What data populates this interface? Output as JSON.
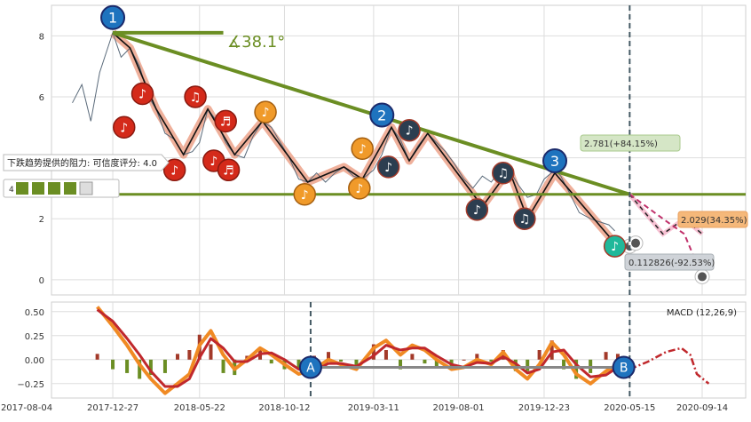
{
  "chart_data": [
    {
      "type": "line",
      "panel": "price",
      "x_dates": [
        "2017-08-04",
        "2017-12-27",
        "2018-05-22",
        "2018-10-12",
        "2019-03-11",
        "2019-08-01",
        "2019-12-23",
        "2020-05-15",
        "2020-09-14"
      ],
      "ylim": [
        -0.5,
        9.0
      ],
      "y_ticks": [
        0,
        2,
        4,
        6,
        8
      ],
      "grid": true,
      "colors": {
        "price_line": "#5a6a7a",
        "trend": "#6b8e23",
        "zigzag": "#111111",
        "highlight": "#e9967a",
        "forecast_up": "#f4a6c0",
        "forecast_dash": "#c0306a"
      },
      "price_series": [
        [
          "2017-10-20",
          5.8
        ],
        [
          "2017-11-05",
          6.4
        ],
        [
          "2017-11-20",
          5.2
        ],
        [
          "2017-12-05",
          6.8
        ],
        [
          "2017-12-27",
          8.1
        ],
        [
          "2018-01-10",
          7.3
        ],
        [
          "2018-01-25",
          7.6
        ],
        [
          "2018-02-10",
          7.0
        ],
        [
          "2018-02-25",
          6.0
        ],
        [
          "2018-03-10",
          5.6
        ],
        [
          "2018-03-25",
          4.8
        ],
        [
          "2018-04-10",
          4.6
        ],
        [
          "2018-04-25",
          4.1
        ],
        [
          "2018-05-10",
          4.2
        ],
        [
          "2018-05-22",
          4.5
        ],
        [
          "2018-06-05",
          5.6
        ],
        [
          "2018-06-20",
          5.2
        ],
        [
          "2018-07-05",
          4.5
        ],
        [
          "2018-07-20",
          4.1
        ],
        [
          "2018-08-05",
          4.0
        ],
        [
          "2018-08-20",
          4.7
        ],
        [
          "2018-09-05",
          5.2
        ],
        [
          "2018-09-20",
          5.0
        ],
        [
          "2018-10-05",
          4.5
        ],
        [
          "2018-10-20",
          4.0
        ],
        [
          "2018-11-05",
          3.3
        ],
        [
          "2018-11-20",
          3.2
        ],
        [
          "2018-12-05",
          3.5
        ],
        [
          "2018-12-20",
          3.2
        ],
        [
          "2019-01-05",
          3.5
        ],
        [
          "2019-01-20",
          3.7
        ],
        [
          "2019-02-05",
          3.4
        ],
        [
          "2019-02-20",
          3.3
        ],
        [
          "2019-03-11",
          3.6
        ],
        [
          "2019-03-25",
          4.1
        ],
        [
          "2019-04-10",
          5.0
        ],
        [
          "2019-04-25",
          4.6
        ],
        [
          "2019-05-10",
          3.9
        ],
        [
          "2019-05-25",
          4.4
        ],
        [
          "2019-06-10",
          4.8
        ],
        [
          "2019-06-25",
          4.5
        ],
        [
          "2019-07-10",
          4.2
        ],
        [
          "2019-07-25",
          3.8
        ],
        [
          "2019-08-10",
          3.3
        ],
        [
          "2019-08-25",
          3.0
        ],
        [
          "2019-09-10",
          3.4
        ],
        [
          "2019-09-25",
          3.2
        ],
        [
          "2019-10-10",
          3.6
        ],
        [
          "2019-10-25",
          3.6
        ],
        [
          "2019-11-10",
          3.1
        ],
        [
          "2019-11-25",
          2.7
        ],
        [
          "2019-12-10",
          2.8
        ],
        [
          "2019-12-23",
          3.3
        ],
        [
          "2020-01-10",
          3.6
        ],
        [
          "2020-01-20",
          3.4
        ],
        [
          "2020-02-05",
          2.8
        ],
        [
          "2020-02-20",
          2.2
        ],
        [
          "2020-03-10",
          2.0
        ],
        [
          "2020-03-25",
          1.9
        ],
        [
          "2020-04-10",
          1.8
        ],
        [
          "2020-04-20",
          1.6
        ]
      ],
      "support_level": 2.8,
      "resistance_line": [
        [
          "2017-12-27",
          8.1
        ],
        [
          "2020-05-15",
          2.8
        ]
      ],
      "flat_line": [
        [
          "2017-12-27",
          8.1
        ],
        [
          "2018-07-01",
          8.1
        ]
      ],
      "angle_label": "∡38.1°",
      "zigzag": [
        [
          "2017-12-27",
          8.1
        ],
        [
          "2018-01-25",
          7.6
        ],
        [
          "2018-03-10",
          5.6
        ],
        [
          "2018-04-25",
          4.1
        ],
        [
          "2018-06-05",
          5.6
        ],
        [
          "2018-07-20",
          4.1
        ],
        [
          "2018-09-05",
          5.2
        ],
        [
          "2018-11-20",
          3.2
        ],
        [
          "2019-01-20",
          3.7
        ],
        [
          "2019-02-20",
          3.3
        ],
        [
          "2019-04-10",
          5.0
        ],
        [
          "2019-05-10",
          3.9
        ],
        [
          "2019-06-10",
          4.8
        ],
        [
          "2019-09-10",
          2.4
        ],
        [
          "2019-10-25",
          3.6
        ],
        [
          "2019-11-25",
          2.0
        ],
        [
          "2020-01-10",
          3.5
        ],
        [
          "2020-04-20",
          1.2
        ]
      ],
      "forecast": {
        "start": [
          "2020-05-15",
          2.8
        ],
        "up_path": [
          [
            "2020-05-15",
            2.8
          ],
          [
            "2020-07-10",
            1.5
          ],
          [
            "2020-08-15",
            2.0
          ],
          [
            "2020-09-14",
            1.5
          ]
        ],
        "down_path": [
          [
            "2020-05-15",
            2.8
          ],
          [
            "2020-07-10",
            2.0
          ],
          [
            "2020-08-15",
            1.5
          ],
          [
            "2020-09-14",
            0.1
          ]
        ],
        "markers": [
          [
            "2020-05-15",
            1.1
          ],
          [
            "2020-05-25",
            1.2
          ],
          [
            "2020-09-14",
            0.1
          ]
        ]
      },
      "annotations": {
        "target_up": "2.781(+84.15%)",
        "target_mid": "2.029(34.35%)",
        "target_down": "0.112826(-92.53%)"
      },
      "badges": [
        {
          "label": "1",
          "date": "2017-12-27",
          "y": 8.6
        },
        {
          "label": "2",
          "date": "2019-03-25",
          "y": 5.4
        },
        {
          "label": "3",
          "date": "2020-01-10",
          "y": 3.9
        }
      ],
      "notes": [
        {
          "glyph": "♪",
          "date": "2018-01-15",
          "y": 5.0,
          "style": "red"
        },
        {
          "glyph": "♪",
          "date": "2018-02-15",
          "y": 6.1,
          "style": "red"
        },
        {
          "glyph": "♪",
          "date": "2018-04-10",
          "y": 3.6,
          "style": "red"
        },
        {
          "glyph": "♫",
          "date": "2018-05-15",
          "y": 6.0,
          "style": "red"
        },
        {
          "glyph": "♪",
          "date": "2018-06-15",
          "y": 3.9,
          "style": "red"
        },
        {
          "glyph": "♬",
          "date": "2018-07-05",
          "y": 5.2,
          "style": "red"
        },
        {
          "glyph": "♬",
          "date": "2018-07-10",
          "y": 3.6,
          "style": "red"
        },
        {
          "glyph": "♪",
          "date": "2018-09-10",
          "y": 5.5,
          "style": "orange"
        },
        {
          "glyph": "♪",
          "date": "2018-11-15",
          "y": 2.8,
          "style": "orange"
        },
        {
          "glyph": "♪",
          "date": "2019-02-15",
          "y": 3.0,
          "style": "orange"
        },
        {
          "glyph": "♪",
          "date": "2019-02-20",
          "y": 4.3,
          "style": "orange"
        },
        {
          "glyph": "♪",
          "date": "2019-04-05",
          "y": 3.7,
          "style": "navy"
        },
        {
          "glyph": "♪",
          "date": "2019-05-10",
          "y": 4.9,
          "style": "navy"
        },
        {
          "glyph": "♪",
          "date": "2019-09-01",
          "y": 2.3,
          "style": "navy"
        },
        {
          "glyph": "♫",
          "date": "2019-10-15",
          "y": 3.5,
          "style": "navy"
        },
        {
          "glyph": "♫",
          "date": "2019-11-20",
          "y": 2.0,
          "style": "navy"
        },
        {
          "glyph": "♪",
          "date": "2020-04-20",
          "y": 1.1,
          "style": "teal"
        }
      ],
      "resistance_tooltip": "下跌趋势提供的阻力: 可信度评分: 4.0",
      "rating_label": "4"
    },
    {
      "type": "line",
      "panel": "macd",
      "title": "MACD (12,26,9)",
      "ylim": [
        -0.4,
        0.6
      ],
      "y_ticks": [
        -0.25,
        0.0,
        0.25,
        0.5
      ],
      "y_tick_labels": [
        "−0.25",
        "0.00",
        "0.25",
        "0.50"
      ],
      "grid": true,
      "colors": {
        "macd": "#f08a24",
        "signal": "#c0282c",
        "hist_pos": "#a33a2a",
        "hist_neg": "#6b8e23",
        "link": "#888888",
        "vline": "#455a64"
      },
      "macd_series": [
        [
          "2017-12-01",
          0.55
        ],
        [
          "2017-12-27",
          0.35
        ],
        [
          "2018-01-20",
          0.15
        ],
        [
          "2018-02-10",
          -0.05
        ],
        [
          "2018-03-01",
          -0.2
        ],
        [
          "2018-03-25",
          -0.35
        ],
        [
          "2018-04-15",
          -0.25
        ],
        [
          "2018-05-05",
          -0.15
        ],
        [
          "2018-05-22",
          0.15
        ],
        [
          "2018-06-10",
          0.3
        ],
        [
          "2018-07-01",
          0.05
        ],
        [
          "2018-07-20",
          -0.1
        ],
        [
          "2018-08-10",
          0.0
        ],
        [
          "2018-09-01",
          0.12
        ],
        [
          "2018-09-20",
          0.05
        ],
        [
          "2018-10-12",
          -0.05
        ],
        [
          "2018-11-05",
          -0.15
        ],
        [
          "2018-12-01",
          -0.1
        ],
        [
          "2018-12-25",
          0.0
        ],
        [
          "2019-01-15",
          -0.05
        ],
        [
          "2019-02-10",
          -0.1
        ],
        [
          "2019-03-11",
          0.12
        ],
        [
          "2019-04-01",
          0.2
        ],
        [
          "2019-04-25",
          0.05
        ],
        [
          "2019-05-15",
          0.15
        ],
        [
          "2019-06-05",
          0.1
        ],
        [
          "2019-06-25",
          0.0
        ],
        [
          "2019-07-20",
          -0.1
        ],
        [
          "2019-08-10",
          -0.08
        ],
        [
          "2019-09-01",
          0.0
        ],
        [
          "2019-09-25",
          -0.05
        ],
        [
          "2019-10-15",
          0.08
        ],
        [
          "2019-11-05",
          -0.1
        ],
        [
          "2019-11-25",
          -0.2
        ],
        [
          "2019-12-15",
          -0.05
        ],
        [
          "2020-01-05",
          0.18
        ],
        [
          "2020-01-25",
          0.05
        ],
        [
          "2020-02-15",
          -0.15
        ],
        [
          "2020-03-10",
          -0.25
        ],
        [
          "2020-04-05",
          -0.12
        ],
        [
          "2020-04-25",
          -0.05
        ]
      ],
      "signal_series": [
        [
          "2017-12-01",
          0.52
        ],
        [
          "2017-12-27",
          0.4
        ],
        [
          "2018-01-20",
          0.22
        ],
        [
          "2018-02-10",
          0.05
        ],
        [
          "2018-03-01",
          -0.12
        ],
        [
          "2018-03-25",
          -0.28
        ],
        [
          "2018-04-15",
          -0.28
        ],
        [
          "2018-05-05",
          -0.2
        ],
        [
          "2018-05-22",
          0.02
        ],
        [
          "2018-06-10",
          0.22
        ],
        [
          "2018-07-01",
          0.12
        ],
        [
          "2018-07-20",
          -0.02
        ],
        [
          "2018-08-10",
          -0.02
        ],
        [
          "2018-09-01",
          0.06
        ],
        [
          "2018-09-20",
          0.07
        ],
        [
          "2018-10-12",
          0.0
        ],
        [
          "2018-11-05",
          -0.1
        ],
        [
          "2018-12-01",
          -0.12
        ],
        [
          "2018-12-25",
          -0.04
        ],
        [
          "2019-01-15",
          -0.04
        ],
        [
          "2019-02-10",
          -0.07
        ],
        [
          "2019-03-11",
          0.04
        ],
        [
          "2019-04-01",
          0.15
        ],
        [
          "2019-04-25",
          0.1
        ],
        [
          "2019-05-15",
          0.12
        ],
        [
          "2019-06-05",
          0.12
        ],
        [
          "2019-06-25",
          0.04
        ],
        [
          "2019-07-20",
          -0.05
        ],
        [
          "2019-08-10",
          -0.08
        ],
        [
          "2019-09-01",
          -0.03
        ],
        [
          "2019-09-25",
          -0.04
        ],
        [
          "2019-10-15",
          0.03
        ],
        [
          "2019-11-05",
          -0.04
        ],
        [
          "2019-11-25",
          -0.14
        ],
        [
          "2019-12-15",
          -0.1
        ],
        [
          "2020-01-05",
          0.08
        ],
        [
          "2020-01-25",
          0.1
        ],
        [
          "2020-02-15",
          -0.05
        ],
        [
          "2020-03-10",
          -0.18
        ],
        [
          "2020-04-05",
          -0.16
        ],
        [
          "2020-04-25",
          -0.08
        ]
      ],
      "forecast_series": [
        [
          "2020-05-15",
          -0.1
        ],
        [
          "2020-06-15",
          -0.02
        ],
        [
          "2020-07-15",
          0.08
        ],
        [
          "2020-08-10",
          0.12
        ],
        [
          "2020-08-25",
          0.05
        ],
        [
          "2020-09-05",
          -0.15
        ],
        [
          "2020-09-25",
          -0.25
        ]
      ],
      "markers": [
        {
          "label": "A",
          "date": "2018-11-25",
          "y": -0.08
        },
        {
          "label": "B",
          "date": "2020-05-05",
          "y": -0.08
        }
      ],
      "vlines": [
        "2018-11-25",
        "2020-05-15"
      ]
    }
  ]
}
